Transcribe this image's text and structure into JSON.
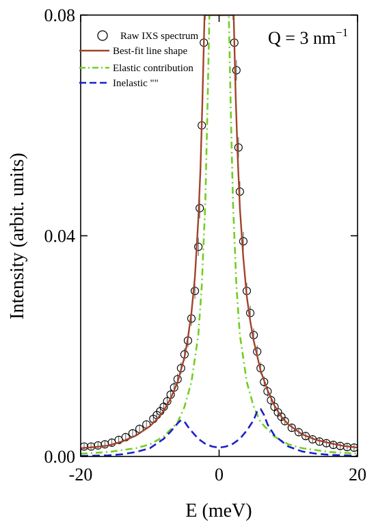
{
  "chart_data": {
    "type": "scatter",
    "xlabel": "E (meV)",
    "ylabel": "Intensity (arbit. units)",
    "xlim": [
      -20,
      20
    ],
    "ylim": [
      0,
      0.08
    ],
    "xticks": [
      -20,
      0,
      20
    ],
    "xtick_labels": [
      "-20",
      "0",
      "20"
    ],
    "yticks": [
      0,
      0.04,
      0.08
    ],
    "ytick_labels": [
      "0.00",
      "0.04",
      "0.08"
    ],
    "annotation": {
      "prefix": "Q = 3 nm",
      "superscript": "−1"
    },
    "grid": false,
    "legend_position": "top-left",
    "legend": [
      {
        "label": "Raw IXS spectrum",
        "marker": "open-circle",
        "color": "#000000"
      },
      {
        "label": "Best-fit line shape",
        "style": "solid",
        "color": "#a0432a"
      },
      {
        "label": "Elastic contribution",
        "style": "dash-dot",
        "color": "#6fcf1f"
      },
      {
        "label": "Inelastic    \"\"",
        "style": "dashed",
        "color": "#1a1fc8"
      }
    ],
    "series": [
      {
        "name": "Raw IXS spectrum",
        "kind": "points",
        "x": [
          -19.5,
          -18.5,
          -17.5,
          -16.5,
          -15.5,
          -14.5,
          -13.5,
          -12.5,
          -11.5,
          -10.5,
          -9.5,
          -9,
          -8.5,
          -8,
          -7.5,
          -7,
          -6.5,
          -6,
          -5.5,
          -5,
          -4.5,
          -4,
          -3.5,
          -3,
          -2.8,
          -2.5,
          -2.2,
          -2,
          2,
          2.2,
          2.5,
          2.8,
          3,
          3.5,
          4,
          4.5,
          5,
          5.5,
          6,
          6.5,
          7,
          7.5,
          8,
          8.5,
          9,
          9.5,
          10.5,
          11.5,
          12.5,
          13.5,
          14.5,
          15.5,
          16.5,
          17.5,
          18.5,
          19.5
        ],
        "y": [
          0.0018,
          0.0018,
          0.002,
          0.0022,
          0.0025,
          0.003,
          0.0035,
          0.0042,
          0.005,
          0.0058,
          0.0068,
          0.0075,
          0.0082,
          0.009,
          0.01,
          0.0112,
          0.0125,
          0.014,
          0.016,
          0.0185,
          0.021,
          0.025,
          0.03,
          0.038,
          0.045,
          0.06,
          0.075,
          0.081,
          0.081,
          0.075,
          0.07,
          0.056,
          0.048,
          0.039,
          0.03,
          0.026,
          0.022,
          0.019,
          0.016,
          0.0135,
          0.0118,
          0.0102,
          0.009,
          0.008,
          0.0072,
          0.0064,
          0.0052,
          0.0044,
          0.0037,
          0.0031,
          0.0027,
          0.0024,
          0.0021,
          0.0019,
          0.0017,
          0.0016
        ]
      },
      {
        "name": "Best-fit line shape",
        "kind": "line",
        "x": [
          -20,
          -18,
          -16,
          -14,
          -12,
          -10,
          -9,
          -8,
          -7,
          -6,
          -5,
          -4.5,
          -4,
          -3.5,
          -3,
          -2.7,
          -2.4,
          -2.1,
          2.1,
          2.4,
          2.7,
          3,
          3.5,
          4,
          4.5,
          5,
          6,
          7,
          8,
          9,
          10,
          12,
          14,
          16,
          18,
          20
        ],
        "y": [
          0.0015,
          0.0017,
          0.002,
          0.0027,
          0.0038,
          0.0055,
          0.0067,
          0.0083,
          0.0105,
          0.0135,
          0.018,
          0.0215,
          0.026,
          0.0325,
          0.043,
          0.052,
          0.065,
          0.08,
          0.08,
          0.065,
          0.054,
          0.045,
          0.036,
          0.029,
          0.0245,
          0.021,
          0.0155,
          0.012,
          0.0092,
          0.0072,
          0.0058,
          0.004,
          0.003,
          0.0024,
          0.0019,
          0.0016
        ]
      },
      {
        "name": "Elastic contribution",
        "kind": "line",
        "x": [
          -20,
          -16,
          -12,
          -10,
          -8,
          -6,
          -5,
          -4,
          -3,
          -2.5,
          -2,
          -1.7,
          -1.4,
          1.4,
          1.7,
          2,
          2.5,
          3,
          4,
          5,
          6,
          8,
          10,
          12,
          16,
          20
        ],
        "y": [
          0.0005,
          0.0008,
          0.0015,
          0.0022,
          0.0036,
          0.0062,
          0.009,
          0.0135,
          0.022,
          0.031,
          0.046,
          0.062,
          0.08,
          0.08,
          0.062,
          0.046,
          0.031,
          0.022,
          0.0135,
          0.009,
          0.0062,
          0.0036,
          0.0022,
          0.0015,
          0.0008,
          0.0005
        ]
      },
      {
        "name": "Inelastic",
        "kind": "line",
        "x": [
          -20,
          -16,
          -14,
          -12,
          -10,
          -8,
          -7,
          -6,
          -5.5,
          -5,
          -4.5,
          -4,
          -3,
          -2,
          -1,
          0,
          1,
          2,
          3,
          4,
          5,
          5.5,
          6,
          6.5,
          7,
          8,
          10,
          12,
          14,
          16,
          20
        ],
        "y": [
          0.0001,
          0.0002,
          0.0004,
          0.0008,
          0.0015,
          0.0032,
          0.0045,
          0.006,
          0.0066,
          0.0063,
          0.0054,
          0.0046,
          0.0032,
          0.0023,
          0.0018,
          0.0016,
          0.0018,
          0.0023,
          0.0032,
          0.0047,
          0.0066,
          0.0082,
          0.0086,
          0.0075,
          0.0058,
          0.0038,
          0.0018,
          0.0009,
          0.0005,
          0.0003,
          0.0001
        ]
      }
    ]
  }
}
